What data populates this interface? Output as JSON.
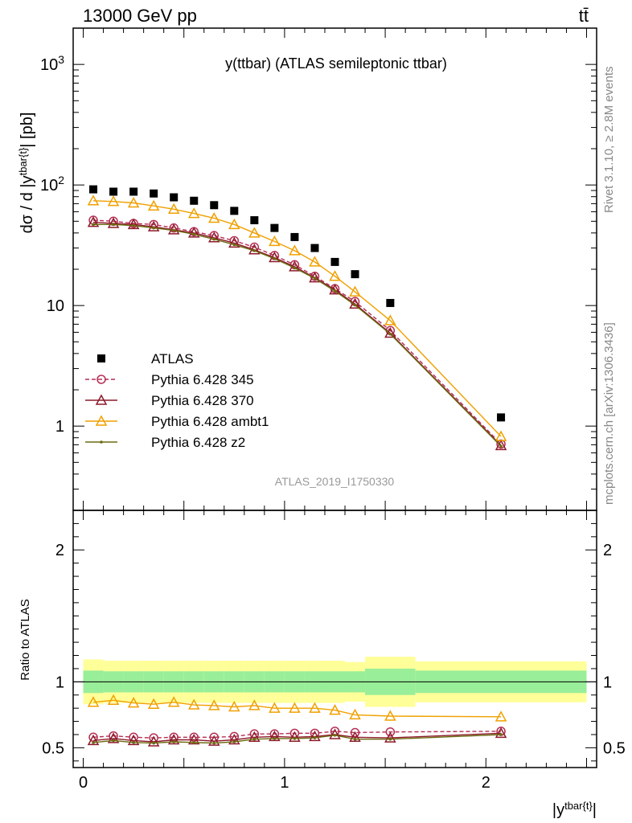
{
  "header": {
    "left": "13000 GeV pp",
    "right": "tt̄"
  },
  "side_labels": {
    "rivet": "Rivet 3.1.10, ≥ 2.8M events",
    "mcplots": "mcplots.cern.ch [arXiv:1306.3436]"
  },
  "watermark": "ATLAS_2019_I1750330",
  "chart_data": [
    {
      "type": "scatter",
      "panel": "main",
      "title": "y(ttbar) (ATLAS semileptonic ttbar)",
      "ylabel": "dσ / d |y^{tbar{t}}| [pb]",
      "yscale": "log",
      "ylim": [
        0.2,
        2000
      ],
      "xlim": [
        -0.05,
        2.55
      ],
      "y_tick_labels": [
        "1",
        "10",
        "10^2",
        "10^3"
      ],
      "legend_position": "lower-left",
      "x": [
        0.05,
        0.15,
        0.25,
        0.35,
        0.45,
        0.55,
        0.65,
        0.75,
        0.85,
        0.95,
        1.05,
        1.15,
        1.25,
        1.35,
        1.525,
        2.075
      ],
      "series": [
        {
          "name": "ATLAS",
          "color": "#000000",
          "marker": "square",
          "line": "none",
          "values": [
            92,
            88,
            88,
            85,
            79,
            74,
            68,
            61,
            51,
            44,
            37,
            30,
            23,
            18.2,
            10.5,
            1.18
          ]
        },
        {
          "name": "Pythia 6.428 345",
          "color": "#b52d53",
          "marker": "circle",
          "line": "dashed",
          "values": [
            51,
            50,
            48,
            47,
            44,
            41,
            38,
            34.5,
            30.5,
            26,
            21.8,
            17.5,
            13.8,
            10.8,
            6.2,
            0.71
          ]
        },
        {
          "name": "Pythia 6.428 370",
          "color": "#8c1a2a",
          "marker": "triangle",
          "line": "solid",
          "values": [
            49,
            48,
            47,
            45,
            42.5,
            40,
            36.5,
            33,
            29,
            25,
            21,
            17,
            13.5,
            10.3,
            5.9,
            0.69
          ]
        },
        {
          "name": "Pythia 6.428 ambt1",
          "color": "#f0a000",
          "marker": "triangle",
          "line": "solid",
          "values": [
            74,
            73,
            71,
            67,
            63,
            58,
            53,
            47,
            40,
            34,
            28.5,
            23,
            17.5,
            13,
            7.5,
            0.82
          ]
        },
        {
          "name": "Pythia 6.428 z2",
          "color": "#6b6b10",
          "marker": "dot",
          "line": "solid",
          "values": [
            47,
            47,
            46,
            44,
            42,
            39,
            35.5,
            32,
            28.5,
            24.5,
            20.5,
            16.8,
            13.2,
            10.1,
            5.8,
            0.68
          ]
        }
      ]
    },
    {
      "type": "line",
      "panel": "ratio",
      "ylabel": "Ratio to ATLAS",
      "xlabel": "|y^{tbar{t}}|",
      "ylim": [
        0.35,
        2.3
      ],
      "xlim": [
        -0.05,
        2.55
      ],
      "y_tick_labels": [
        "0.5",
        "1",
        "2"
      ],
      "x_tick_labels": [
        "0",
        "1",
        "2"
      ],
      "x": [
        0.05,
        0.15,
        0.25,
        0.35,
        0.45,
        0.55,
        0.65,
        0.75,
        0.85,
        0.95,
        1.05,
        1.15,
        1.25,
        1.35,
        1.525,
        2.075
      ],
      "bands": {
        "edges": [
          0,
          0.1,
          0.2,
          0.3,
          0.4,
          0.5,
          0.6,
          0.7,
          0.8,
          0.9,
          1.0,
          1.1,
          1.2,
          1.3,
          1.4,
          1.65,
          2.5
        ],
        "stat_color": "#99ee99",
        "total_color": "#ffff99",
        "stat_half": [
          0.085,
          0.08,
          0.08,
          0.08,
          0.08,
          0.08,
          0.08,
          0.08,
          0.08,
          0.08,
          0.08,
          0.08,
          0.08,
          0.08,
          0.1,
          0.085
        ],
        "total_half": [
          0.17,
          0.16,
          0.16,
          0.16,
          0.16,
          0.16,
          0.16,
          0.16,
          0.16,
          0.16,
          0.16,
          0.16,
          0.16,
          0.15,
          0.19,
          0.155
        ]
      },
      "series": [
        {
          "name": "Pythia 6.428 345",
          "color": "#b52d53",
          "marker": "circle",
          "line": "dashed",
          "values": [
            0.58,
            0.59,
            0.58,
            0.575,
            0.58,
            0.58,
            0.58,
            0.585,
            0.605,
            0.605,
            0.61,
            0.61,
            0.625,
            0.615,
            0.62,
            0.625
          ]
        },
        {
          "name": "Pythia 6.428 370",
          "color": "#8c1a2a",
          "marker": "triangle",
          "line": "solid",
          "values": [
            0.555,
            0.57,
            0.555,
            0.545,
            0.56,
            0.56,
            0.55,
            0.56,
            0.58,
            0.585,
            0.58,
            0.585,
            0.6,
            0.58,
            0.575,
            0.61
          ]
        },
        {
          "name": "Pythia 6.428 ambt1",
          "color": "#f0a000",
          "marker": "triangle",
          "line": "solid",
          "values": [
            0.845,
            0.86,
            0.84,
            0.83,
            0.845,
            0.825,
            0.82,
            0.81,
            0.82,
            0.8,
            0.8,
            0.8,
            0.785,
            0.75,
            0.74,
            0.735
          ]
        },
        {
          "name": "Pythia 6.428 z2",
          "color": "#6b6b10",
          "marker": "dot",
          "line": "solid",
          "values": [
            0.54,
            0.555,
            0.54,
            0.535,
            0.545,
            0.54,
            0.535,
            0.545,
            0.565,
            0.57,
            0.57,
            0.575,
            0.595,
            0.565,
            0.565,
            0.6
          ]
        }
      ]
    }
  ]
}
